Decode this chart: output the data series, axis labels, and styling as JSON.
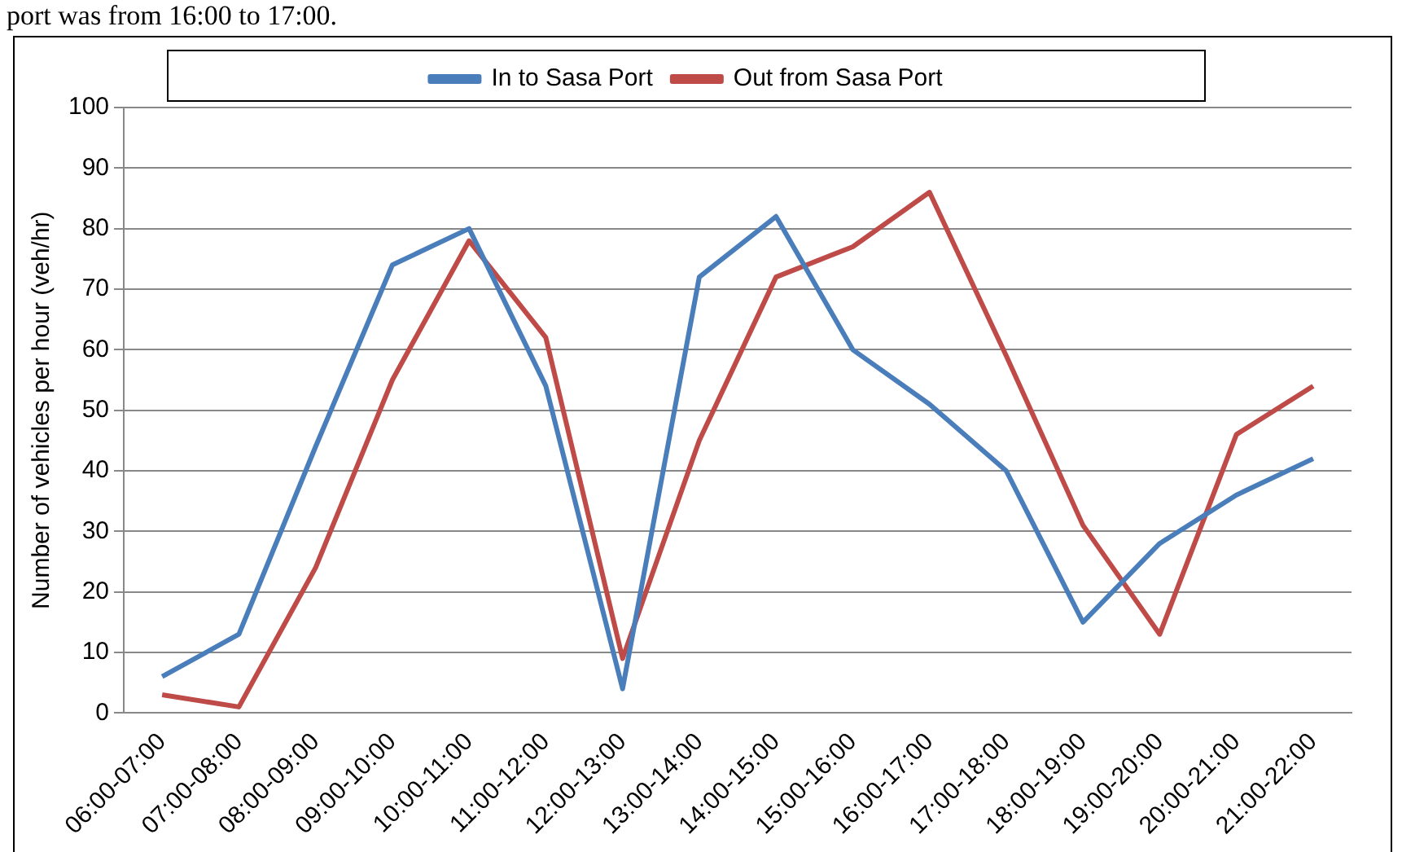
{
  "chart_data": {
    "type": "line",
    "ylabel": "Number of vehicles per hour (veh/hr)",
    "annotations": [
      "port was from 16:00 to 17:00."
    ],
    "categories": [
      "06:00-07:00",
      "07:00-08:00",
      "08:00-09:00",
      "09:00-10:00",
      "10:00-11:00",
      "11:00-12:00",
      "12:00-13:00",
      "13:00-14:00",
      "14:00-15:00",
      "15:00-16:00",
      "16:00-17:00",
      "17:00-18:00",
      "18:00-19:00",
      "19:00-20:00",
      "20:00-21:00",
      "21:00-22:00"
    ],
    "series": [
      {
        "name": "In to Sasa Port",
        "color": "#4a7ebb",
        "values": [
          6,
          13,
          44,
          74,
          80,
          54,
          4,
          72,
          82,
          60,
          51,
          40,
          15,
          28,
          36,
          42
        ]
      },
      {
        "name": "Out from Sasa Port",
        "color": "#be4b48",
        "values": [
          3,
          1,
          24,
          55,
          78,
          62,
          9,
          45,
          72,
          77,
          86,
          59,
          31,
          13,
          46,
          54
        ]
      }
    ],
    "ylim": [
      0,
      100
    ],
    "yticks": [
      0,
      10,
      20,
      30,
      40,
      50,
      60,
      70,
      80,
      90,
      100
    ],
    "grid": "y",
    "legend": "top",
    "marker": "none",
    "line_style": "solid"
  }
}
